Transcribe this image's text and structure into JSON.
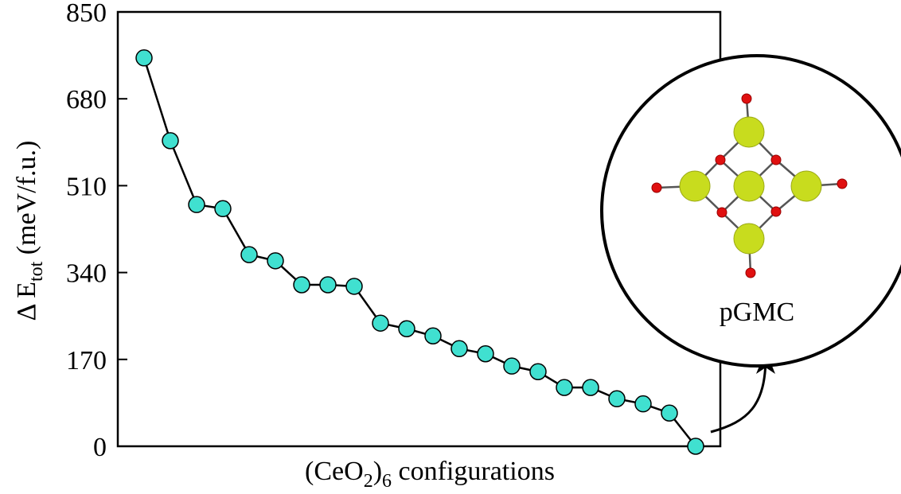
{
  "chart_data": {
    "type": "line",
    "ylabel": [
      "Δ E",
      "tot",
      " (meV/f.u.)"
    ],
    "xlabel": [
      "(CeO",
      "2",
      ")",
      "6",
      " configurations"
    ],
    "annotation": "pGMC",
    "categories": [
      null,
      null,
      null,
      null,
      null,
      null,
      null,
      null,
      null,
      null,
      null,
      null,
      null,
      null,
      null,
      null,
      null,
      null,
      null,
      null,
      null,
      null
    ],
    "series": [
      {
        "color": "#40e0d0",
        "values": [
          760,
          598,
          473,
          465,
          375,
          363,
          316,
          316,
          313,
          241,
          230,
          216,
          191,
          181,
          157,
          146,
          115,
          115,
          93,
          83,
          65,
          0
        ]
      }
    ],
    "ylim": [
      0,
      850
    ],
    "yticks": [
      0,
      170,
      340,
      510,
      680,
      850
    ],
    "grid": false
  }
}
